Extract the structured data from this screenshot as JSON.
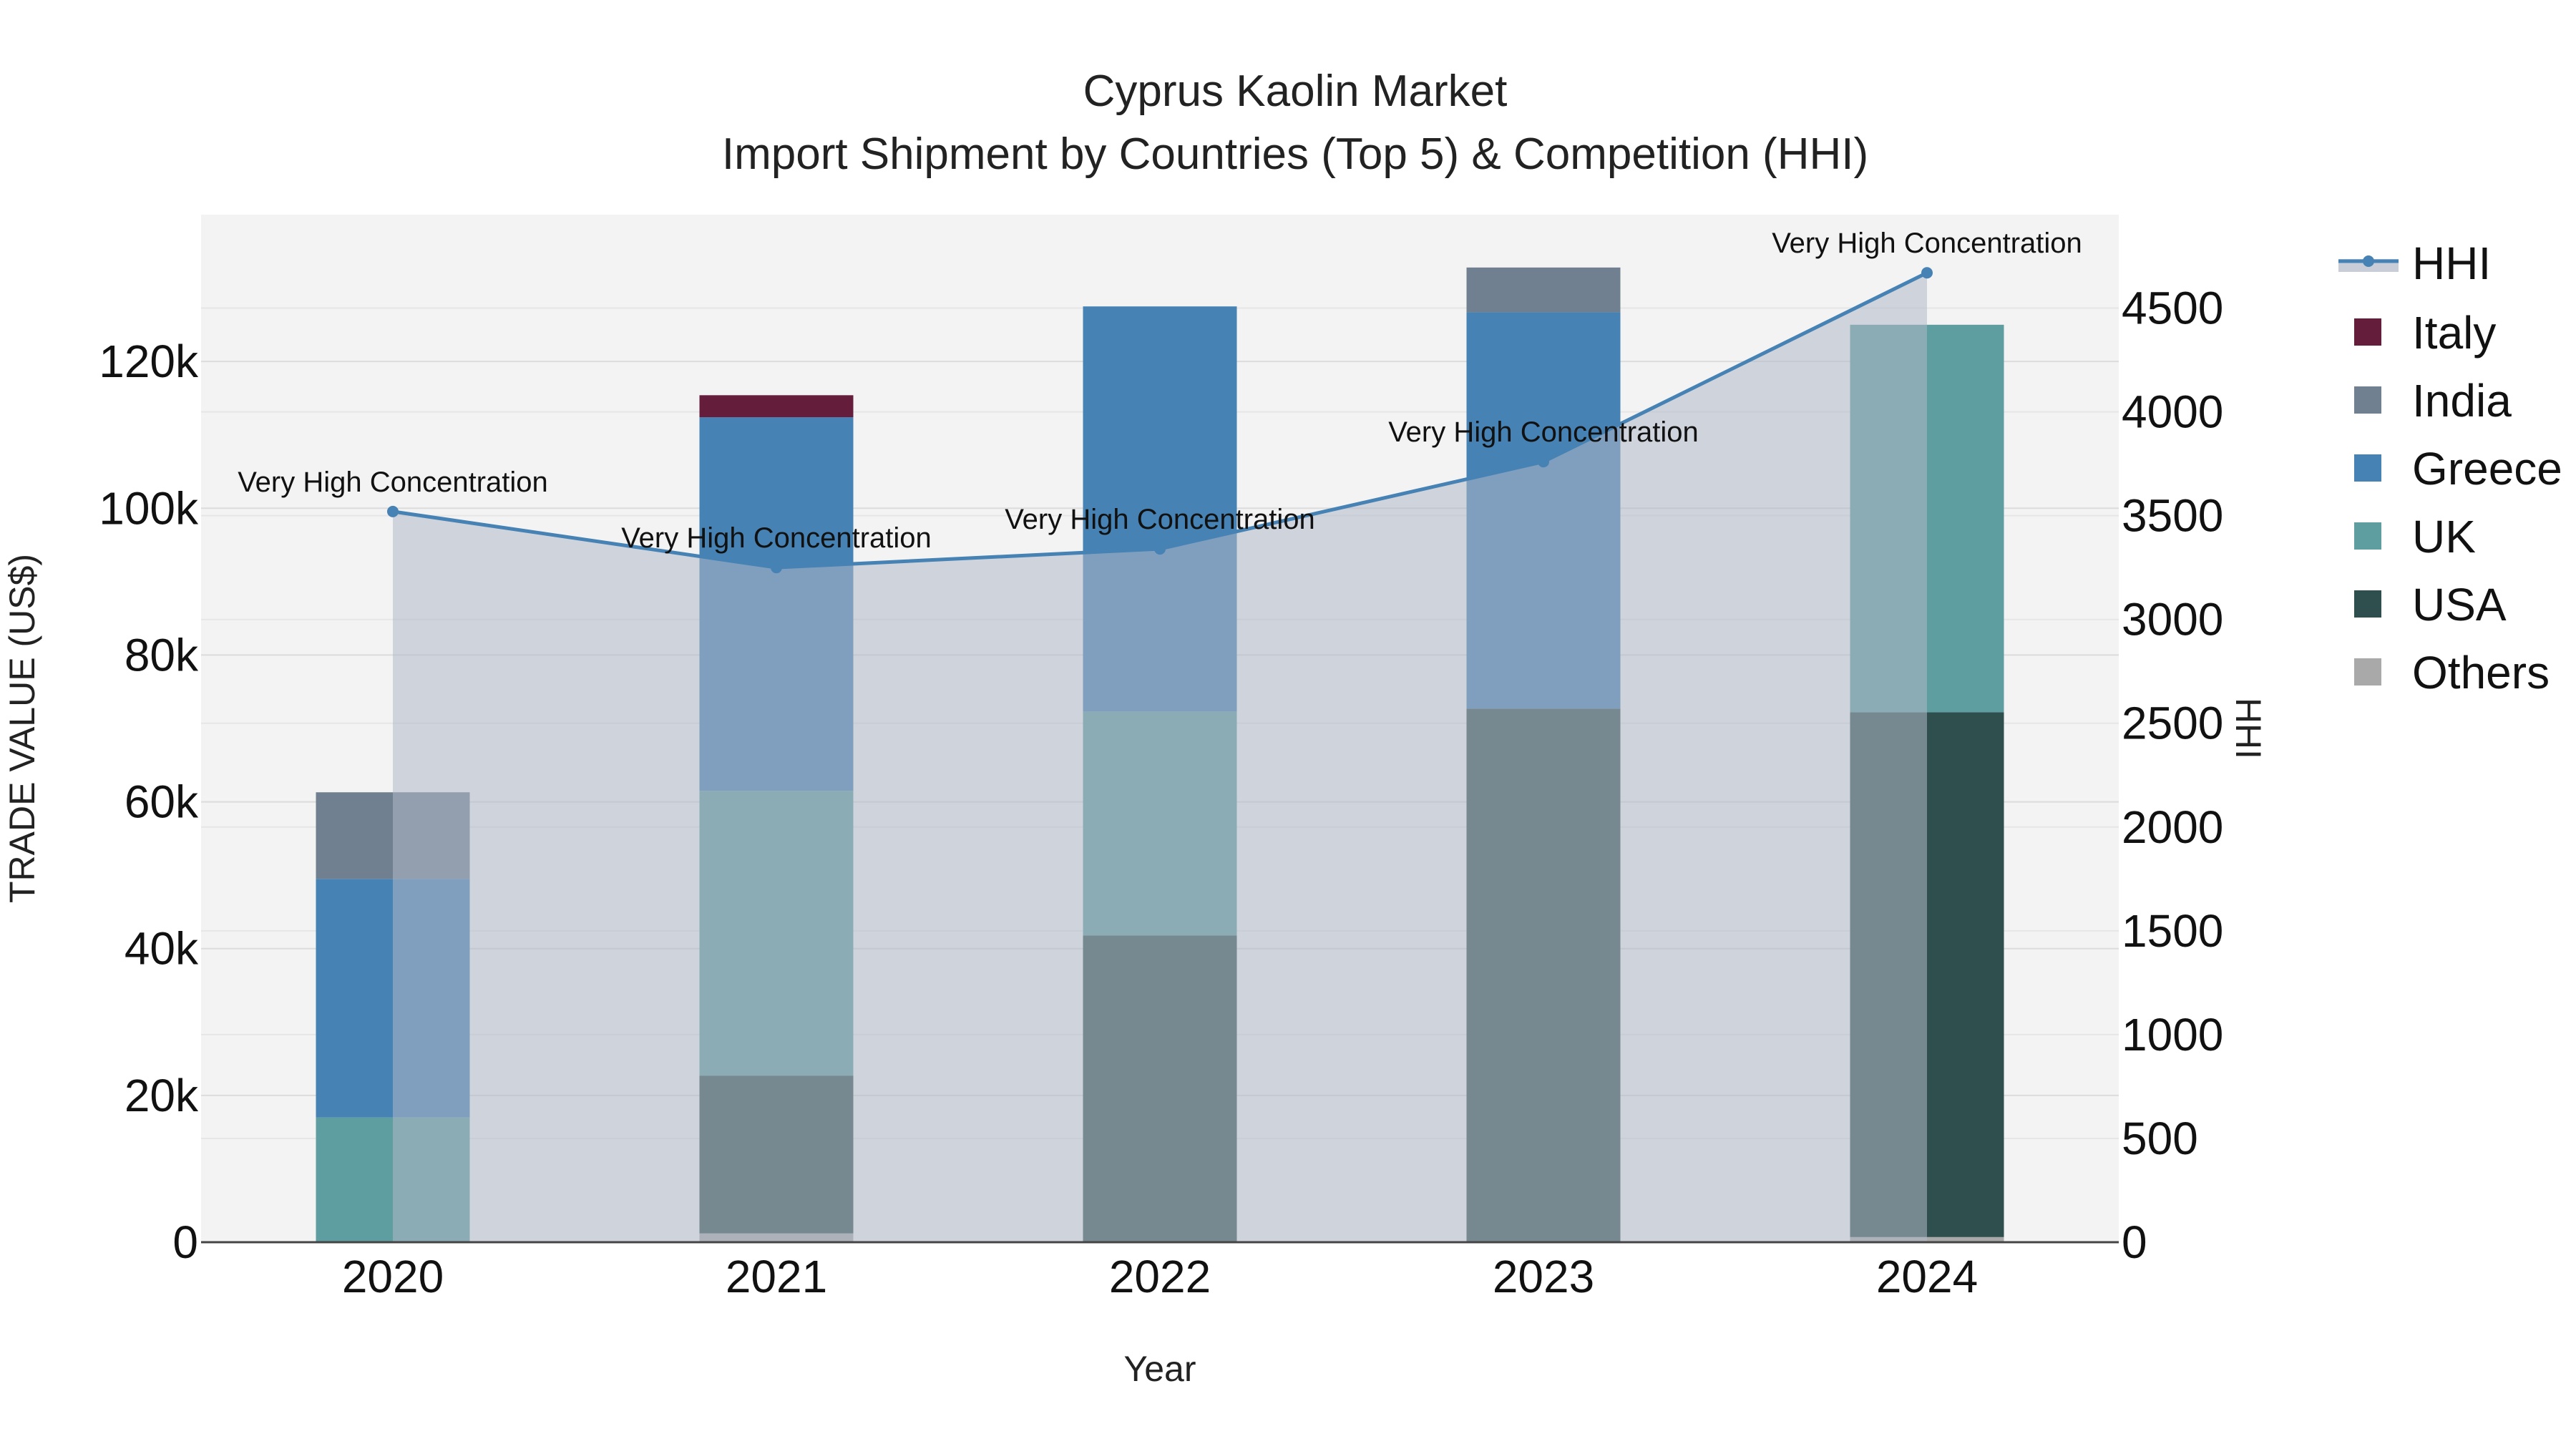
{
  "chart_data": {
    "type": "bar",
    "title": "Cyprus Kaolin Market",
    "subtitle": "Import Shipment by Countries (Top 5) & Competition (HHI)",
    "xlabel": "Year",
    "ylabel": "TRADE VALUE (US$)",
    "y2label": "HHI",
    "categories": [
      "2020",
      "2021",
      "2022",
      "2023",
      "2024"
    ],
    "ylim": [
      0,
      140000
    ],
    "y2lim": [
      0,
      4950
    ],
    "yticks": [
      "0",
      "20k",
      "40k",
      "60k",
      "80k",
      "100k",
      "120k"
    ],
    "y2ticks": [
      "0",
      "500",
      "1000",
      "1500",
      "2000",
      "2500",
      "3000",
      "3500",
      "4000",
      "4500"
    ],
    "stacked": true,
    "grid": true,
    "legend_position": "right",
    "series": [
      {
        "name": "Others",
        "color": "#a9a9a9",
        "values": [
          0,
          1200,
          0,
          0,
          700
        ]
      },
      {
        "name": "USA",
        "color": "#2f4f4f",
        "values": [
          0,
          21500,
          41800,
          72700,
          71500
        ]
      },
      {
        "name": "UK",
        "color": "#5f9ea0",
        "values": [
          17000,
          38800,
          30500,
          0,
          52800
        ]
      },
      {
        "name": "Greece",
        "color": "#4682b4",
        "values": [
          32500,
          50900,
          55200,
          54000,
          0
        ]
      },
      {
        "name": "India",
        "color": "#708090",
        "values": [
          11800,
          0,
          0,
          6100,
          0
        ]
      },
      {
        "name": "Italy",
        "color": "#641e3c",
        "values": [
          0,
          3000,
          0,
          0,
          0
        ]
      }
    ],
    "hhi": {
      "name": "HHI",
      "color": "#4682b4",
      "values": [
        3520,
        3250,
        3340,
        3760,
        4670
      ],
      "annotations": [
        "Very High Concentration",
        "Very High Concentration",
        "Very High Concentration",
        "Very High Concentration",
        "Very High Concentration"
      ]
    }
  }
}
